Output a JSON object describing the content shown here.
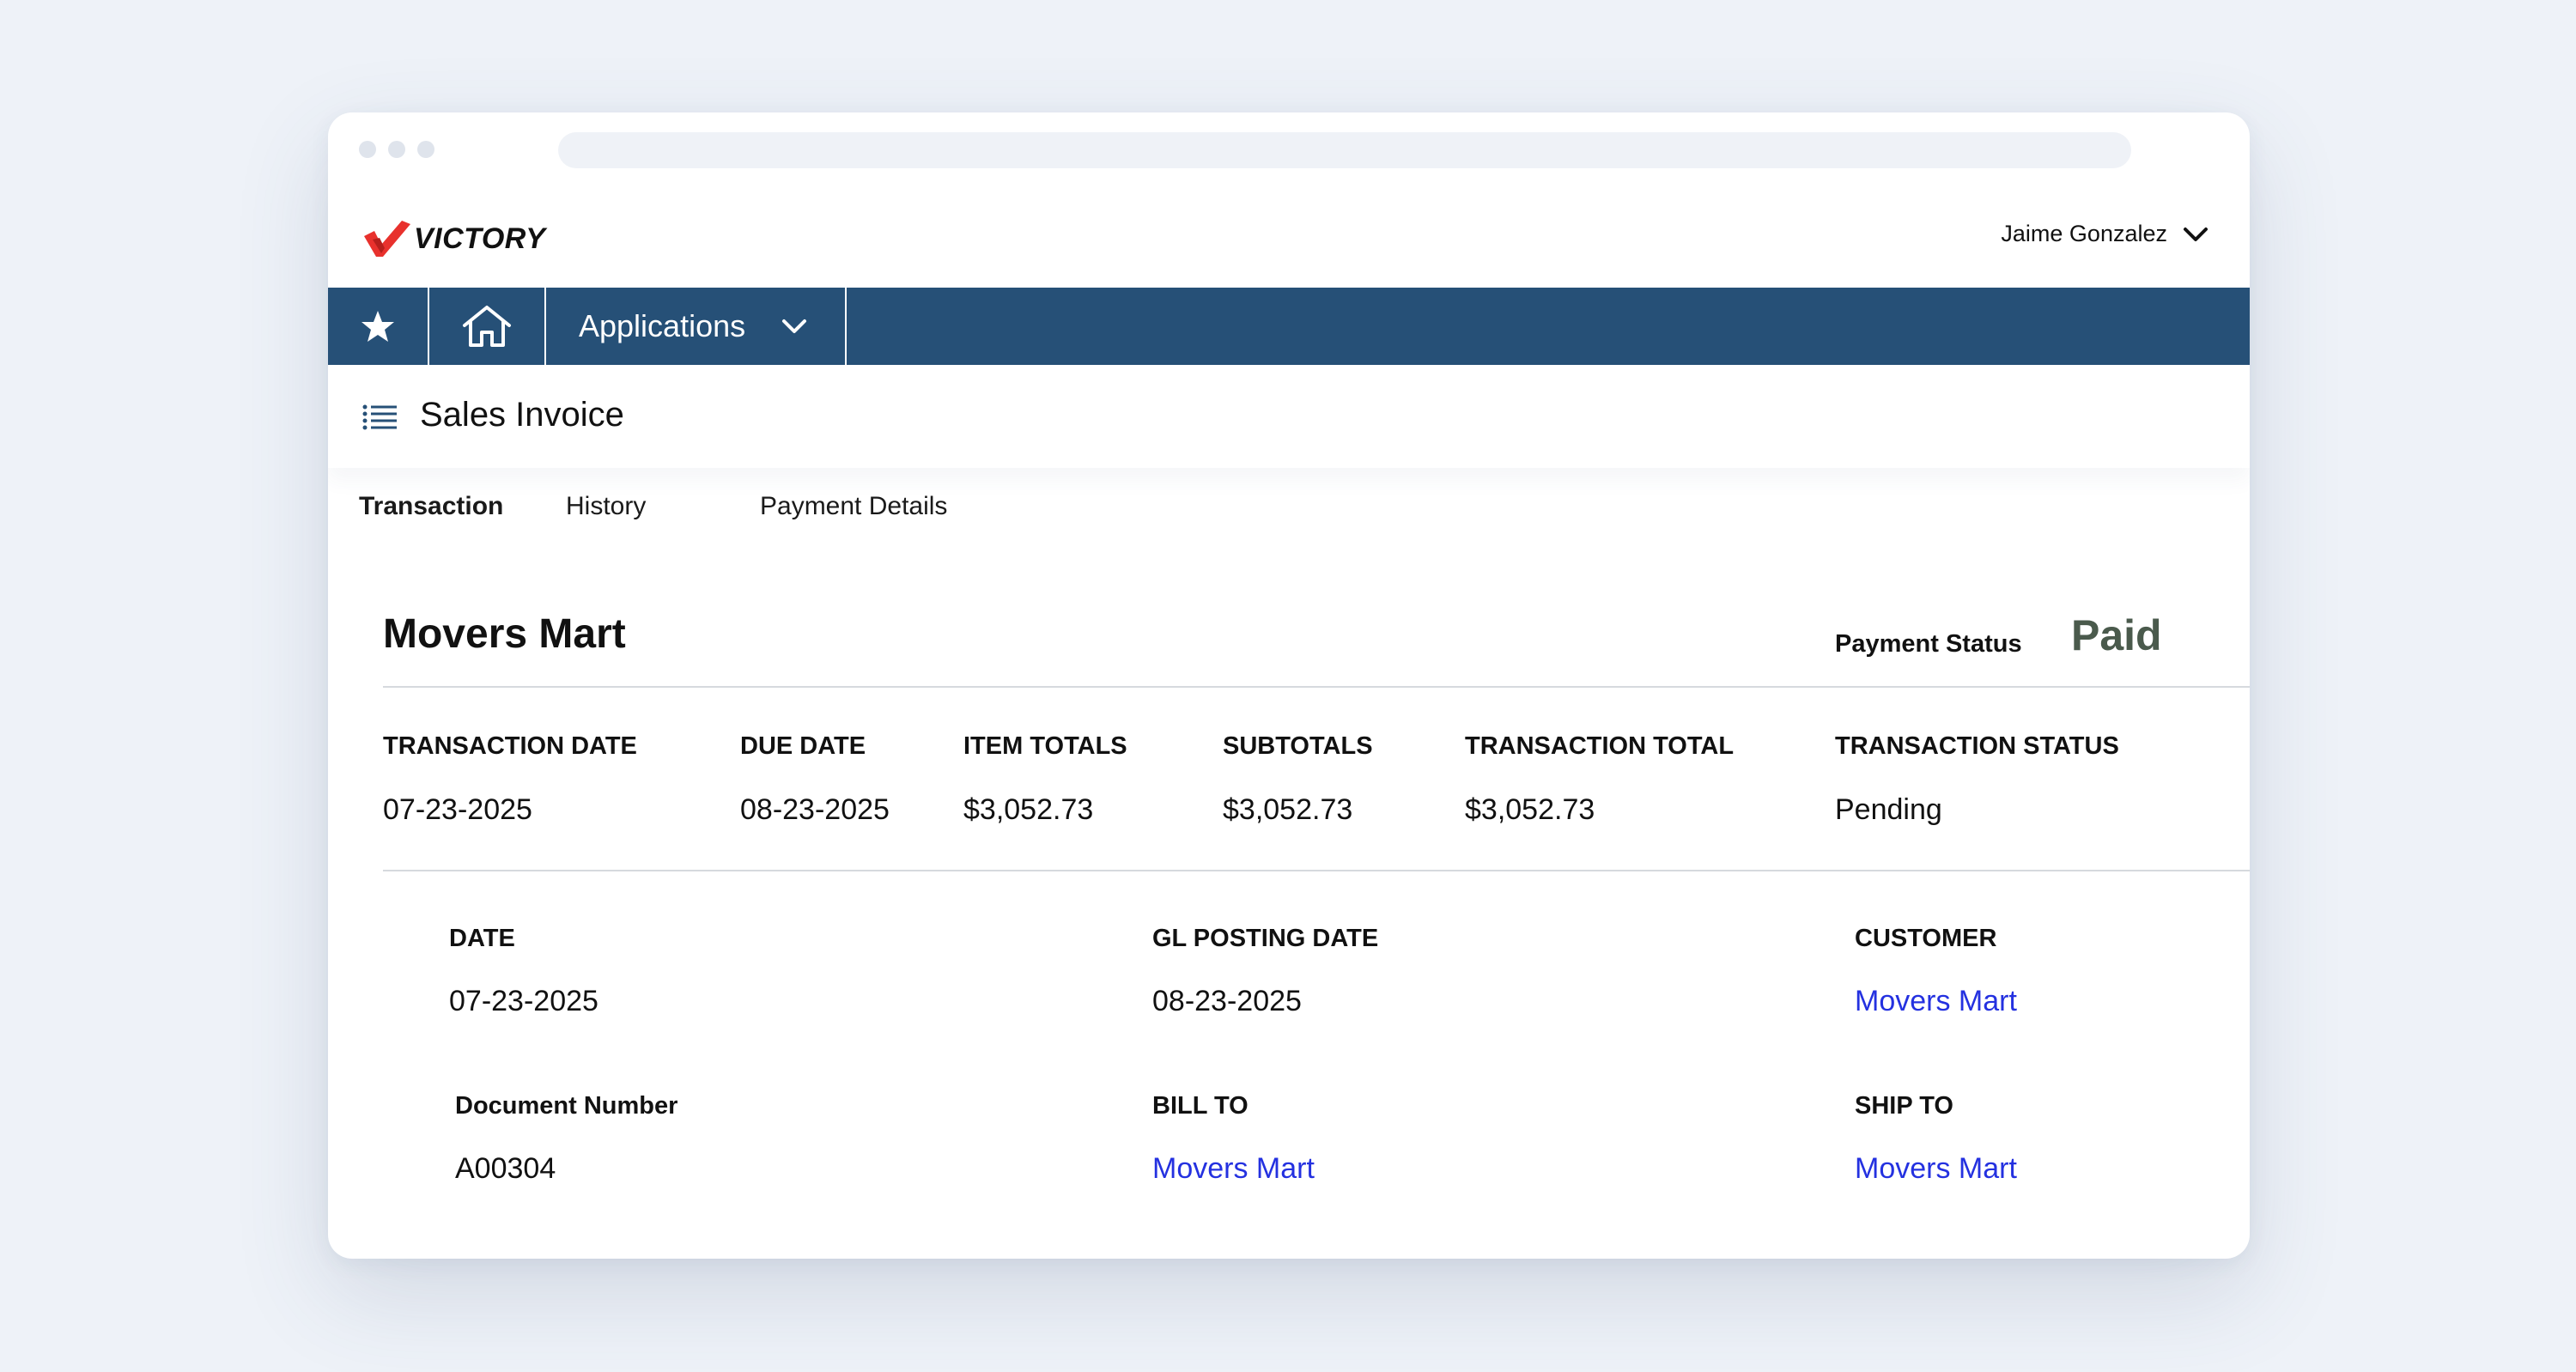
{
  "brand": {
    "name": "VICTORY",
    "accent": "#e8312d"
  },
  "user": {
    "name": "Jaime Gonzalez"
  },
  "nav": {
    "background": "#265077",
    "favorites_icon": "star-icon",
    "home_icon": "home-icon",
    "applications_label": "Applications"
  },
  "page": {
    "title": "Sales Invoice",
    "menu_icon": "list-icon"
  },
  "tabs": [
    {
      "label": "Transaction",
      "active": true
    },
    {
      "label": "History",
      "active": false
    },
    {
      "label": "Payment Details",
      "active": false
    }
  ],
  "header": {
    "customer_name": "Movers Mart",
    "payment_status_label": "Payment Status",
    "payment_status_value": "Paid"
  },
  "summary": [
    {
      "label": "TRANSACTION DATE",
      "value": "07-23-2025"
    },
    {
      "label": "DUE DATE",
      "value": "08-23-2025"
    },
    {
      "label": "ITEM TOTALS",
      "value": "$3,052.73"
    },
    {
      "label": "SUBTOTALS",
      "value": "$3,052.73"
    },
    {
      "label": "TRANSACTION TOTAL",
      "value": "$3,052.73"
    },
    {
      "label": "TRANSACTION STATUS",
      "value": "Pending"
    }
  ],
  "details": {
    "date": {
      "label": "DATE",
      "value": "07-23-2025"
    },
    "gl_posting_date": {
      "label": "GL POSTING DATE",
      "value": "08-23-2025"
    },
    "customer": {
      "label": "CUSTOMER",
      "value": "Movers Mart"
    },
    "document_number": {
      "label": "Document Number",
      "value": "A00304"
    },
    "bill_to": {
      "label": "BILL TO",
      "value": "Movers Mart"
    },
    "ship_to": {
      "label": "SHIP TO",
      "value": "Movers Mart"
    }
  },
  "colors": {
    "link": "#2431e0",
    "paid": "#4a5a4c"
  }
}
